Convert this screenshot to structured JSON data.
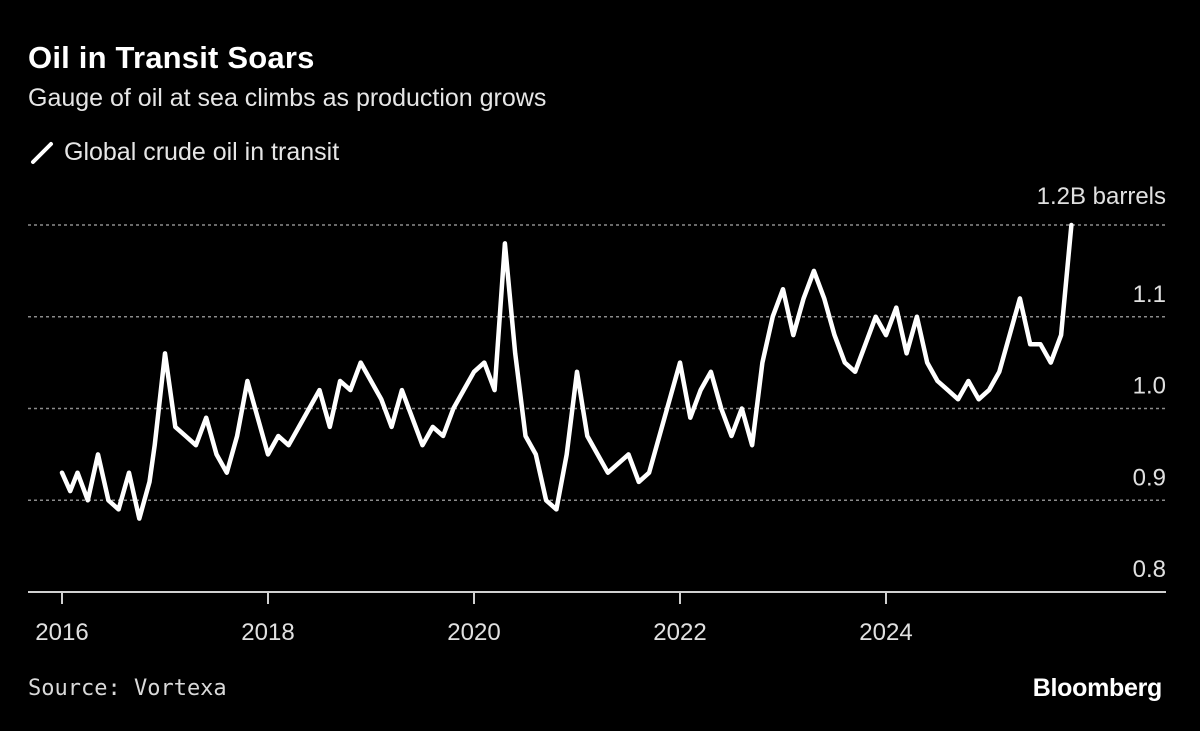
{
  "title": "Oil in Transit Soars",
  "subtitle": "Gauge of oil at sea climbs as production grows",
  "legend_label": "Global crude oil in transit",
  "source": "Source: Vortexa",
  "brand": "Bloomberg",
  "colors": {
    "background": "#000000",
    "line": "#ffffff",
    "grid": "#8c8c8c"
  },
  "chart_data": {
    "type": "line",
    "title": "Oil in Transit Soars",
    "subtitle": "Gauge of oil at sea climbs as production grows",
    "xlabel": "",
    "ylabel": "",
    "unit_label": "1.2B barrels",
    "ylim": [
      0.8,
      1.2
    ],
    "xlim": [
      2016.0,
      2026.5
    ],
    "y_ticks": [
      {
        "value": 1.2,
        "label": ""
      },
      {
        "value": 1.1,
        "label": "1.1"
      },
      {
        "value": 1.0,
        "label": "1.0"
      },
      {
        "value": 0.9,
        "label": "0.9"
      },
      {
        "value": 0.8,
        "label": "0.8"
      }
    ],
    "x_ticks": [
      {
        "value": 2016,
        "label": "2016"
      },
      {
        "value": 2018,
        "label": "2018"
      },
      {
        "value": 2020,
        "label": "2020"
      },
      {
        "value": 2022,
        "label": "2022"
      },
      {
        "value": 2024,
        "label": "2024"
      }
    ],
    "grid": true,
    "legend_position": "top-left",
    "series": [
      {
        "name": "Global crude oil in transit",
        "x": [
          2016.0,
          2016.08,
          2016.15,
          2016.25,
          2016.35,
          2016.45,
          2016.55,
          2016.65,
          2016.75,
          2016.85,
          2016.9,
          2017.0,
          2017.1,
          2017.2,
          2017.3,
          2017.4,
          2017.5,
          2017.6,
          2017.7,
          2017.8,
          2017.9,
          2018.0,
          2018.1,
          2018.2,
          2018.3,
          2018.4,
          2018.5,
          2018.6,
          2018.7,
          2018.8,
          2018.9,
          2019.0,
          2019.1,
          2019.2,
          2019.3,
          2019.4,
          2019.5,
          2019.6,
          2019.7,
          2019.8,
          2019.9,
          2020.0,
          2020.1,
          2020.2,
          2020.3,
          2020.4,
          2020.5,
          2020.6,
          2020.7,
          2020.8,
          2020.9,
          2021.0,
          2021.1,
          2021.2,
          2021.3,
          2021.4,
          2021.5,
          2021.6,
          2021.7,
          2021.8,
          2021.9,
          2022.0,
          2022.1,
          2022.2,
          2022.3,
          2022.4,
          2022.5,
          2022.6,
          2022.7,
          2022.8,
          2022.9,
          2023.0,
          2023.1,
          2023.2,
          2023.3,
          2023.4,
          2023.5,
          2023.6,
          2023.7,
          2023.8,
          2023.9,
          2024.0,
          2024.1,
          2024.2,
          2024.3,
          2024.4,
          2024.5,
          2024.6,
          2024.7,
          2024.8,
          2024.9,
          2025.0,
          2025.1,
          2025.2,
          2025.3,
          2025.4,
          2025.5,
          2025.6,
          2025.7,
          2025.8
        ],
        "values": [
          0.93,
          0.91,
          0.93,
          0.9,
          0.95,
          0.9,
          0.89,
          0.93,
          0.88,
          0.92,
          0.96,
          1.06,
          0.98,
          0.97,
          0.96,
          0.99,
          0.95,
          0.93,
          0.97,
          1.03,
          0.99,
          0.95,
          0.97,
          0.96,
          0.98,
          1.0,
          1.02,
          0.98,
          1.03,
          1.02,
          1.05,
          1.03,
          1.01,
          0.98,
          1.02,
          0.99,
          0.96,
          0.98,
          0.97,
          1.0,
          1.02,
          1.04,
          1.05,
          1.02,
          1.18,
          1.06,
          0.97,
          0.95,
          0.9,
          0.89,
          0.95,
          1.04,
          0.97,
          0.95,
          0.93,
          0.94,
          0.95,
          0.92,
          0.93,
          0.97,
          1.01,
          1.05,
          0.99,
          1.02,
          1.04,
          1.0,
          0.97,
          1.0,
          0.96,
          1.05,
          1.1,
          1.13,
          1.08,
          1.12,
          1.15,
          1.12,
          1.08,
          1.05,
          1.04,
          1.07,
          1.1,
          1.08,
          1.11,
          1.06,
          1.1,
          1.05,
          1.03,
          1.02,
          1.01,
          1.03,
          1.01,
          1.02,
          1.04,
          1.08,
          1.12,
          1.07,
          1.07,
          1.05,
          1.08,
          1.2
        ]
      }
    ]
  }
}
